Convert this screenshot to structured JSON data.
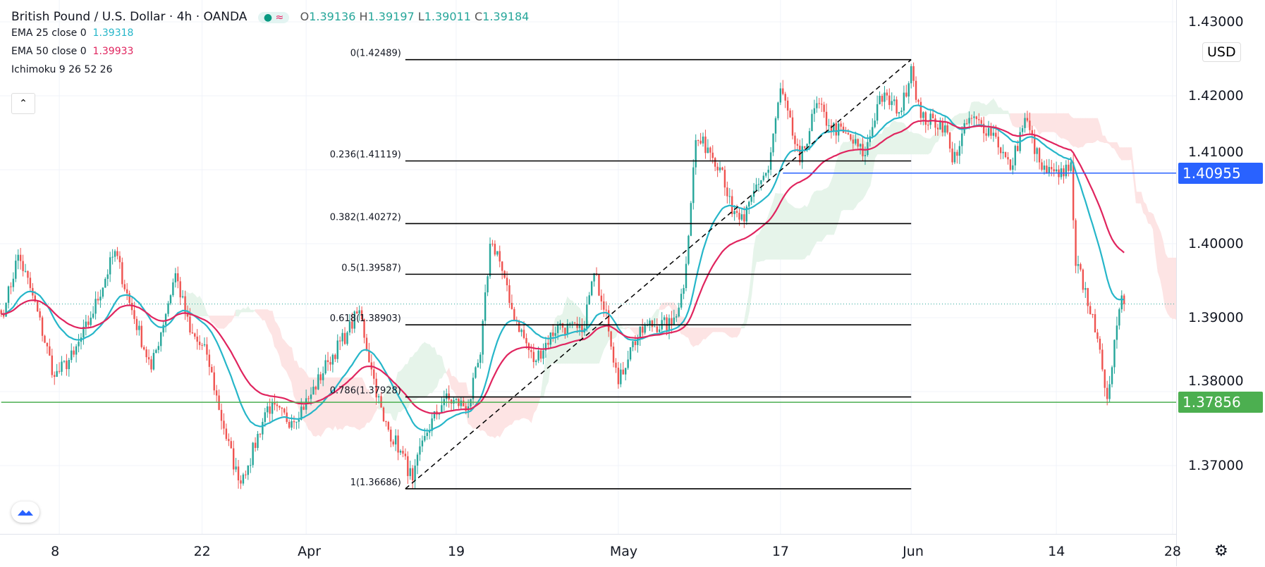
{
  "header": {
    "symbol": "British Pound / U.S. Dollar",
    "interval": "4h",
    "source": "OANDA",
    "separator": "·",
    "open_label": "O",
    "open": "1.39136",
    "high_label": "H",
    "high": "1.39197",
    "low_label": "L",
    "low": "1.39011",
    "close_label": "C",
    "close": "1.39184"
  },
  "indicators": [
    {
      "label": "EMA 25 close 0",
      "value": "1.39318",
      "color": "#26b6c9"
    },
    {
      "label": "EMA 50 close 0",
      "value": "1.39933",
      "color": "#e0245e"
    },
    {
      "label": "Ichimoku 9 26 52 26",
      "value": ""
    }
  ],
  "currency": "USD",
  "collapse_icon": "chevron-up-icon",
  "settings_icon": "gear-icon",
  "chart_data": {
    "type": "candlestick",
    "title": "British Pound / U.S. Dollar · 4h · OANDA",
    "x_unit": "bar index",
    "ylim": [
      1.3635,
      1.4325
    ],
    "y_ticks": [
      "1.37000",
      "1.38000",
      "1.39000",
      "1.40000",
      "1.41000",
      "1.42000",
      "1.43000"
    ],
    "y_tick_values": [
      1.37,
      1.38,
      1.39,
      1.4,
      1.41,
      1.42,
      1.43
    ],
    "x_ticks": [
      {
        "bar": 24,
        "label": "8"
      },
      {
        "bar": 83,
        "label": "22"
      },
      {
        "bar": 126,
        "label": "Apr"
      },
      {
        "bar": 188,
        "label": "19"
      },
      {
        "bar": 255,
        "label": "May"
      },
      {
        "bar": 322,
        "label": "17"
      },
      {
        "bar": 376,
        "label": "Jun"
      },
      {
        "bar": 436,
        "label": "14"
      },
      {
        "bar": 484,
        "label": "28"
      }
    ],
    "visible_bars": 486,
    "close_path": [
      [
        0,
        1.3905
      ],
      [
        2,
        1.392
      ],
      [
        7,
        1.3985
      ],
      [
        13,
        1.393
      ],
      [
        22,
        1.382
      ],
      [
        30,
        1.385
      ],
      [
        37,
        1.39
      ],
      [
        47,
        1.399
      ],
      [
        53,
        1.392
      ],
      [
        62,
        1.383
      ],
      [
        72,
        1.396
      ],
      [
        78,
        1.388
      ],
      [
        85,
        1.385
      ],
      [
        92,
        1.375
      ],
      [
        98,
        1.368
      ],
      [
        102,
        1.37
      ],
      [
        110,
        1.378
      ],
      [
        120,
        1.376
      ],
      [
        127,
        1.379
      ],
      [
        135,
        1.384
      ],
      [
        143,
        1.388
      ],
      [
        148,
        1.391
      ],
      [
        153,
        1.383
      ],
      [
        158,
        1.376
      ],
      [
        165,
        1.372
      ],
      [
        170,
        1.368
      ],
      [
        175,
        1.374
      ],
      [
        183,
        1.379
      ],
      [
        193,
        1.378
      ],
      [
        198,
        1.385
      ],
      [
        202,
        1.4
      ],
      [
        205,
        1.399
      ],
      [
        210,
        1.392
      ],
      [
        220,
        1.384
      ],
      [
        230,
        1.389
      ],
      [
        240,
        1.388
      ],
      [
        245,
        1.396
      ],
      [
        250,
        1.391
      ],
      [
        255,
        1.381
      ],
      [
        260,
        1.386
      ],
      [
        267,
        1.389
      ],
      [
        277,
        1.389
      ],
      [
        282,
        1.394
      ],
      [
        287,
        1.414
      ],
      [
        292,
        1.413
      ],
      [
        298,
        1.41
      ],
      [
        302,
        1.404
      ],
      [
        307,
        1.403
      ],
      [
        312,
        1.408
      ],
      [
        317,
        1.41
      ],
      [
        322,
        1.421
      ],
      [
        330,
        1.411
      ],
      [
        337,
        1.419
      ],
      [
        342,
        1.416
      ],
      [
        348,
        1.415
      ],
      [
        357,
        1.412
      ],
      [
        363,
        1.42
      ],
      [
        372,
        1.418
      ],
      [
        376,
        1.424
      ],
      [
        380,
        1.417
      ],
      [
        390,
        1.416
      ],
      [
        393,
        1.411
      ],
      [
        400,
        1.417
      ],
      [
        410,
        1.415
      ],
      [
        417,
        1.41
      ],
      [
        423,
        1.417
      ],
      [
        430,
        1.41
      ],
      [
        437,
        1.409
      ],
      [
        442,
        1.411
      ],
      [
        444,
        1.397
      ],
      [
        448,
        1.394
      ],
      [
        452,
        1.388
      ],
      [
        455,
        1.383
      ],
      [
        457,
        1.379
      ],
      [
        460,
        1.387
      ],
      [
        463,
        1.393
      ],
      [
        464,
        1.39184
      ]
    ],
    "fib": {
      "start_bar": 167,
      "end_bar": 376,
      "levels": [
        {
          "ratio": "0",
          "price": 1.42489,
          "label": "0(1.42489)"
        },
        {
          "ratio": "0.236",
          "price": 1.41119,
          "label": "0.236(1.41119)"
        },
        {
          "ratio": "0.382",
          "price": 1.40272,
          "label": "0.382(1.40272)"
        },
        {
          "ratio": "0.5",
          "price": 1.39587,
          "label": "0.5(1.39587)"
        },
        {
          "ratio": "0.618",
          "price": 1.38903,
          "label": "0.618(1.38903)"
        },
        {
          "ratio": "0.786",
          "price": 1.37928,
          "label": "0.786(1.37928)"
        },
        {
          "ratio": "1",
          "price": 1.36686,
          "label": "1(1.36686)"
        }
      ]
    },
    "trendline": {
      "from": [
        167,
        1.36686
      ],
      "to": [
        376,
        1.42489
      ]
    },
    "hlines": [
      {
        "price": 1.40955,
        "label": "1.40955",
        "color": "#2962ff",
        "from_bar": 323
      },
      {
        "price": 1.37856,
        "label": "1.37856",
        "color": "#4caf50",
        "from_bar": 0
      }
    ],
    "last_price": 1.39184,
    "ema": [
      {
        "period": 25,
        "color": "#26b6c9"
      },
      {
        "period": 50,
        "color": "#e0245e"
      }
    ],
    "ichimoku": {
      "conversion": 9,
      "base": 26,
      "span_b": 52,
      "displacement": 26
    },
    "colors": {
      "up": "#26a69a",
      "down": "#ef5350"
    }
  }
}
